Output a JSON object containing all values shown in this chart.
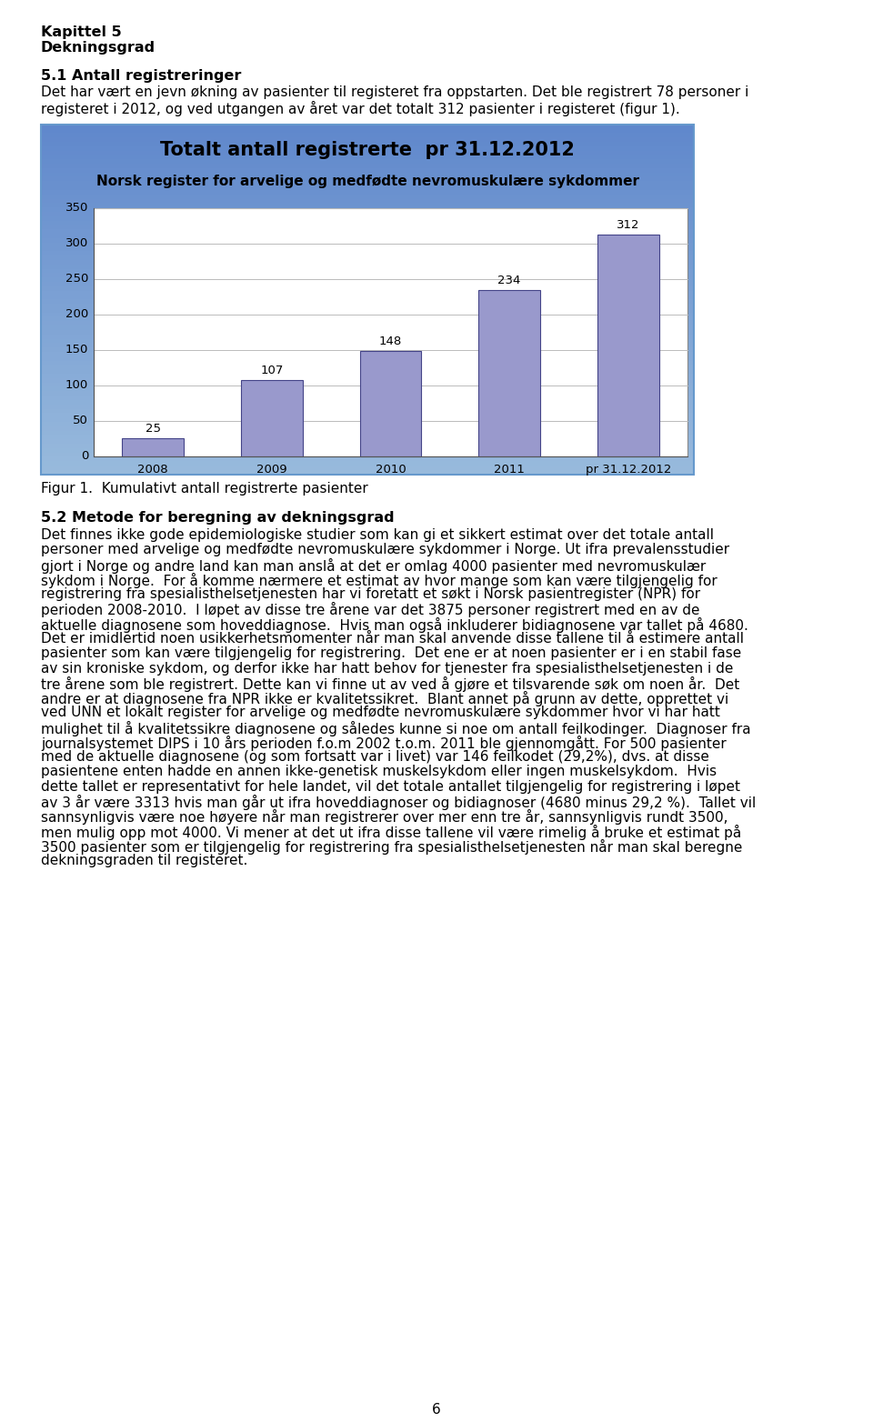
{
  "page_title_line1": "Kapittel 5",
  "page_title_line2": "Dekningsgrad",
  "section1_heading": "5.1 Antall registreringer",
  "section1_text1": "Det har vært en jevn økning av pasienter til registeret fra oppstarten. Det ble registrert 78 personer i",
  "section1_text2": "registeret i 2012, og ved utgangen av året var det totalt 312 pasienter i registeret (figur 1).",
  "chart_title": "Totalt antall registrerte  pr 31.12.2012",
  "chart_subtitle": "Norsk register for arvelige og medfødte nevromuskulære sykdommer",
  "categories": [
    "2008",
    "2009",
    "2010",
    "2011",
    "pr 31.12.2012"
  ],
  "values": [
    25,
    107,
    148,
    234,
    312
  ],
  "bar_color": "#9999cc",
  "bar_edge_color": "#444488",
  "ylim": [
    0,
    350
  ],
  "yticks": [
    0,
    50,
    100,
    150,
    200,
    250,
    300,
    350
  ],
  "figure_caption": "Figur 1.  Kumulativt antall registrerte pasienter",
  "section2_heading": "5.2 Metode for beregning av dekningsgrad",
  "section2_lines": [
    "Det finnes ikke gode epidemiologiske studier som kan gi et sikkert estimat over det totale antall",
    "personer med arvelige og medfødte nevromuskulære sykdommer i Norge. Ut ifra prevalensstudier",
    "gjort i Norge og andre land kan man anslå at det er omlag 4000 pasienter med nevromuskulær",
    "sykdom i Norge.  For å komme nærmere et estimat av hvor mange som kan være tilgjengelig for",
    "registrering fra spesialisthelsetjenesten har vi foretatt et søkt i Norsk pasientregister (NPR) for",
    "perioden 2008-2010.  I løpet av disse tre årene var det 3875 personer registrert med en av de",
    "aktuelle diagnosene som hoveddiagnose.  Hvis man også inkluderer bidiagnosene var tallet på 4680.",
    "Det er imidlertid noen usikkerhetsmomenter når man skal anvende disse tallene til å estimere antall",
    "pasienter som kan være tilgjengelig for registrering.  Det ene er at noen pasienter er i en stabil fase",
    "av sin kroniske sykdom, og derfor ikke har hatt behov for tjenester fra spesialisthelsetjenesten i de",
    "tre årene som ble registrert. Dette kan vi finne ut av ved å gjøre et tilsvarende søk om noen år.  Det",
    "andre er at diagnosene fra NPR ikke er kvalitetssikret.  Blant annet på grunn av dette, opprettet vi",
    "ved UNN et lokalt register for arvelige og medfødte nevromuskulære sykdommer hvor vi har hatt",
    "mulighet til å kvalitetssikre diagnosene og således kunne si noe om antall feilkodinger.  Diagnoser fra",
    "journalsystemet DIPS i 10 års perioden f.o.m 2002 t.o.m. 2011 ble gjennomgått. For 500 pasienter",
    "med de aktuelle diagnosene (og som fortsatt var i livet) var 146 feilkodet (29,2%), dvs. at disse",
    "pasientene enten hadde en annen ikke-genetisk muskelsykdom eller ingen muskelsykdom.  Hvis",
    "dette tallet er representativt for hele landet, vil det totale antallet tilgjengelig for registrering i løpet",
    "av 3 år være 3313 hvis man går ut ifra hoveddiagnoser og bidiagnoser (4680 minus 29,2 %).  Tallet vil",
    "sannsynligvis være noe høyere når man registrerer over mer enn tre år, sannsynligvis rundt 3500,",
    "men mulig opp mot 4000. Vi mener at det ut ifra disse tallene vil være rimelig å bruke et estimat på",
    "3500 pasienter som er tilgjengelig for registrering fra spesialisthelsetjenesten når man skal beregne",
    "dekningsgraden til registeret."
  ],
  "page_number": "6",
  "text_fontsize": 11.0,
  "heading_fontsize": 11.5,
  "chart_title_fontsize": 15,
  "chart_subtitle_fontsize": 11
}
